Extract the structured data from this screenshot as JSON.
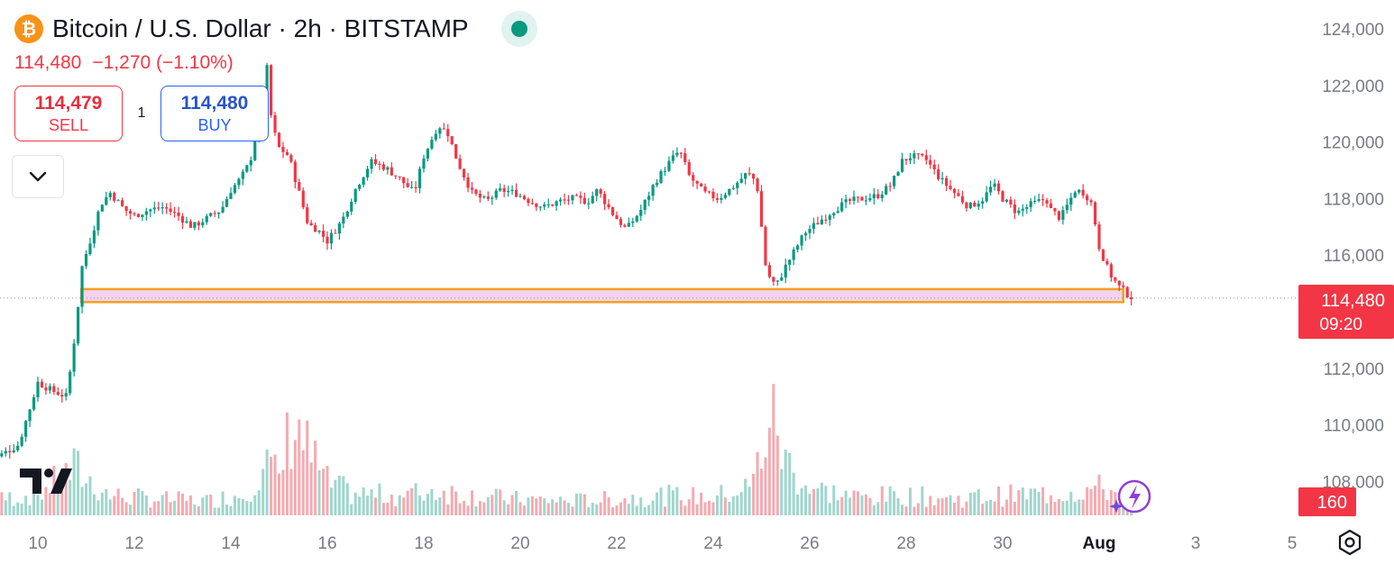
{
  "header": {
    "symbol_icon": "bitcoin-icon",
    "title": "Bitcoin / U.S. Dollar · 2h · BITSTAMP",
    "status_icon": "market-open-dot-icon",
    "last_price": "114,480",
    "change": "−1,270 (−1.10%)"
  },
  "trade": {
    "sell_price": "114,479",
    "sell_label": "SELL",
    "spread": "1",
    "buy_price": "114,480",
    "buy_label": "BUY"
  },
  "colors": {
    "up": "#089981",
    "down": "#f23645",
    "vol_up": "#9fd6cd",
    "vol_down": "#f5aab0",
    "zone_fill": "#f3d2ec",
    "zone_border": "#f0a020",
    "axis_text": "#787b86"
  },
  "chart_data": {
    "type": "candlestick",
    "timeframe": "2h",
    "y_range": [
      106800,
      124500
    ],
    "y_ticks": [
      "124,000",
      "122,000",
      "120,000",
      "118,000",
      "116,000",
      "114,000",
      "112,000",
      "110,000",
      "108,000"
    ],
    "x_ticks": [
      "10",
      "12",
      "14",
      "16",
      "18",
      "20",
      "22",
      "24",
      "26",
      "28",
      "30",
      "Aug",
      "3",
      "5"
    ],
    "price_label": "114,480",
    "countdown": "09:20",
    "volume_label": "160",
    "support_zone": {
      "from": 114340,
      "to": 114800,
      "start": "Jul 10",
      "end": "Aug 1"
    },
    "close_path": [
      [
        9.0,
        108700
      ],
      [
        9.6,
        109300
      ],
      [
        10.0,
        111500
      ],
      [
        10.3,
        111200
      ],
      [
        10.6,
        111000
      ],
      [
        10.8,
        113600
      ],
      [
        10.9,
        115500
      ],
      [
        11.1,
        116600
      ],
      [
        11.3,
        117800
      ],
      [
        11.5,
        118200
      ],
      [
        11.8,
        117600
      ],
      [
        12.0,
        117400
      ],
      [
        12.3,
        117600
      ],
      [
        12.6,
        117700
      ],
      [
        12.9,
        117400
      ],
      [
        13.2,
        117000
      ],
      [
        13.5,
        117300
      ],
      [
        13.8,
        117600
      ],
      [
        14.0,
        118300
      ],
      [
        14.2,
        118700
      ],
      [
        14.4,
        119300
      ],
      [
        14.6,
        121100
      ],
      [
        14.75,
        122600
      ],
      [
        14.85,
        120600
      ],
      [
        15.0,
        119800
      ],
      [
        15.2,
        119500
      ],
      [
        15.4,
        118300
      ],
      [
        15.6,
        117100
      ],
      [
        15.8,
        116900
      ],
      [
        16.0,
        116500
      ],
      [
        16.3,
        117200
      ],
      [
        16.6,
        118400
      ],
      [
        16.9,
        119300
      ],
      [
        17.2,
        119100
      ],
      [
        17.5,
        118700
      ],
      [
        17.8,
        118200
      ],
      [
        18.0,
        119500
      ],
      [
        18.3,
        120600
      ],
      [
        18.5,
        120300
      ],
      [
        18.7,
        119300
      ],
      [
        19.0,
        118200
      ],
      [
        19.3,
        117900
      ],
      [
        19.6,
        118300
      ],
      [
        19.9,
        118200
      ],
      [
        20.2,
        117900
      ],
      [
        20.5,
        117700
      ],
      [
        20.8,
        117900
      ],
      [
        21.1,
        118000
      ],
      [
        21.4,
        117900
      ],
      [
        21.6,
        118300
      ],
      [
        21.9,
        117500
      ],
      [
        22.2,
        116900
      ],
      [
        22.5,
        117600
      ],
      [
        22.8,
        118600
      ],
      [
        23.1,
        119300
      ],
      [
        23.3,
        119700
      ],
      [
        23.5,
        118800
      ],
      [
        23.8,
        118200
      ],
      [
        24.1,
        118000
      ],
      [
        24.4,
        118400
      ],
      [
        24.7,
        118900
      ],
      [
        24.9,
        118600
      ],
      [
        25.1,
        115400
      ],
      [
        25.3,
        114900
      ],
      [
        25.5,
        115600
      ],
      [
        25.7,
        116200
      ],
      [
        25.9,
        116800
      ],
      [
        26.2,
        117200
      ],
      [
        26.5,
        117600
      ],
      [
        26.8,
        117900
      ],
      [
        27.1,
        118000
      ],
      [
        27.4,
        118100
      ],
      [
        27.7,
        118500
      ],
      [
        27.9,
        119300
      ],
      [
        28.1,
        119500
      ],
      [
        28.4,
        119400
      ],
      [
        28.7,
        118700
      ],
      [
        29.0,
        118200
      ],
      [
        29.3,
        117700
      ],
      [
        29.6,
        118000
      ],
      [
        29.8,
        118500
      ],
      [
        30.0,
        118000
      ],
      [
        30.3,
        117500
      ],
      [
        30.6,
        117800
      ],
      [
        30.9,
        118000
      ],
      [
        31.0,
        117600
      ],
      [
        31.2,
        117300
      ],
      [
        31.5,
        118300
      ],
      [
        31.7,
        118200
      ],
      [
        31.85,
        117800
      ],
      [
        32.0,
        116300
      ],
      [
        32.2,
        115400
      ],
      [
        32.4,
        114900
      ],
      [
        32.6,
        114600
      ],
      [
        32.7,
        114480
      ]
    ],
    "volume_path": [
      [
        9.0,
        80
      ],
      [
        10.0,
        120
      ],
      [
        10.8,
        260
      ],
      [
        11.0,
        200
      ],
      [
        11.5,
        110
      ],
      [
        12.5,
        90
      ],
      [
        13.5,
        80
      ],
      [
        14.3,
        120
      ],
      [
        14.7,
        300
      ],
      [
        15.0,
        200
      ],
      [
        15.3,
        560
      ],
      [
        15.6,
        350
      ],
      [
        16.0,
        180
      ],
      [
        16.5,
        120
      ],
      [
        17.5,
        110
      ],
      [
        18.3,
        140
      ],
      [
        19.0,
        110
      ],
      [
        19.8,
        90
      ],
      [
        21.0,
        80
      ],
      [
        22.0,
        90
      ],
      [
        23.0,
        110
      ],
      [
        24.0,
        100
      ],
      [
        24.8,
        160
      ],
      [
        25.2,
        560
      ],
      [
        25.5,
        300
      ],
      [
        26.0,
        150
      ],
      [
        27.0,
        100
      ],
      [
        28.0,
        110
      ],
      [
        29.0,
        90
      ],
      [
        30.0,
        110
      ],
      [
        31.0,
        120
      ],
      [
        32.0,
        150
      ],
      [
        32.7,
        110
      ]
    ]
  }
}
